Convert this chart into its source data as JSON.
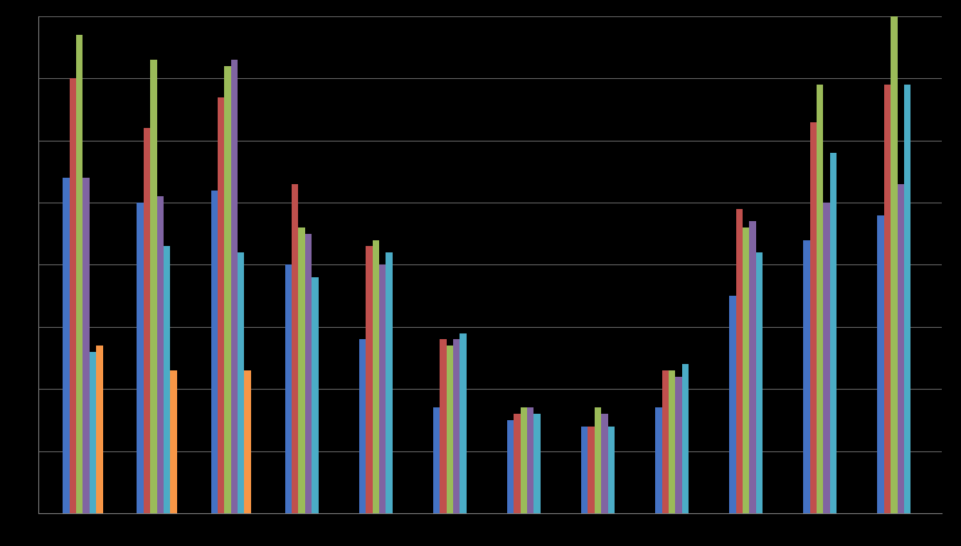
{
  "background_color": "#000000",
  "plot_bg_color": "#000000",
  "grid_color": "#6d6d6d",
  "ylim": [
    0,
    40000
  ],
  "yticks": [
    5000,
    10000,
    15000,
    20000,
    25000,
    30000,
    35000,
    40000
  ],
  "series_colors": [
    "#4472c4",
    "#c0504d",
    "#9bbb59",
    "#8064a2",
    "#4bacc6",
    "#f79646"
  ],
  "groups": [
    [
      27000,
      35000,
      38500,
      27000,
      13000,
      13500
    ],
    [
      25000,
      31000,
      36500,
      25500,
      21500,
      11500
    ],
    [
      26000,
      33500,
      36000,
      36500,
      21000,
      11500
    ],
    [
      20000,
      26500,
      23000,
      22500,
      19000,
      0
    ],
    [
      14000,
      21500,
      22000,
      20000,
      21000,
      0
    ],
    [
      8500,
      14000,
      13500,
      14000,
      14500,
      0
    ],
    [
      7500,
      8000,
      8500,
      8500,
      8000,
      0
    ],
    [
      7000,
      7000,
      8500,
      8000,
      7000,
      0
    ],
    [
      8500,
      11500,
      11500,
      11000,
      12000,
      0
    ],
    [
      17500,
      24500,
      23000,
      23500,
      21000,
      0
    ],
    [
      22000,
      31500,
      34500,
      25000,
      29000,
      0
    ],
    [
      24000,
      34500,
      40500,
      26500,
      34500,
      0
    ]
  ]
}
